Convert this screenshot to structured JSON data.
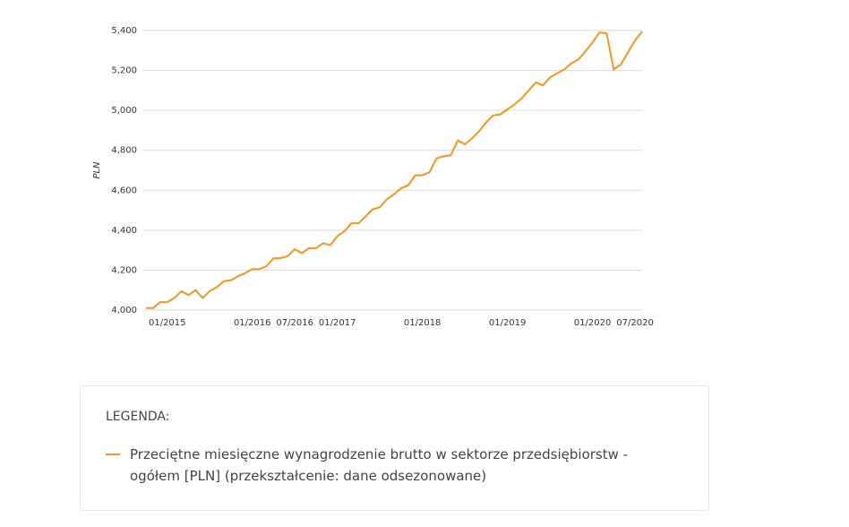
{
  "chart_data": {
    "type": "line",
    "ylabel": "PLN",
    "categories": [
      null,
      null,
      null,
      "01/2015",
      null,
      null,
      null,
      null,
      null,
      null,
      null,
      null,
      null,
      null,
      null,
      "01/2016",
      null,
      null,
      null,
      null,
      null,
      "07/2016",
      null,
      null,
      null,
      null,
      null,
      "01/2017",
      null,
      null,
      null,
      null,
      null,
      null,
      null,
      null,
      null,
      null,
      null,
      "01/2018",
      null,
      null,
      null,
      null,
      null,
      null,
      null,
      null,
      null,
      null,
      null,
      "01/2019",
      null,
      null,
      null,
      null,
      null,
      null,
      null,
      null,
      null,
      null,
      null,
      "01/2020",
      null,
      null,
      null,
      null,
      null,
      "07/2020",
      null
    ],
    "series": [
      {
        "name": "Przeciętne miesięczne wynagrodzenie brutto w sektorze przedsiębiorstw - ogółem [PLN] (przekształcenie: dane odsezonowane)",
        "color": "#f7941d",
        "values": [
          4010,
          4010,
          4040,
          4040,
          4060,
          4095,
          4075,
          4100,
          4060,
          4095,
          4115,
          4145,
          4150,
          4170,
          4185,
          4205,
          4205,
          4220,
          4260,
          4260,
          4270,
          4305,
          4285,
          4310,
          4310,
          4335,
          4325,
          4370,
          4395,
          4435,
          4435,
          4470,
          4505,
          4515,
          4555,
          4580,
          4610,
          4625,
          4675,
          4675,
          4690,
          4760,
          4770,
          4775,
          4850,
          4830,
          4860,
          4895,
          4940,
          4975,
          4980,
          5005,
          5030,
          5060,
          5100,
          5140,
          5125,
          5165,
          5185,
          5205,
          5235,
          5255,
          5295,
          5340,
          5390,
          5385,
          5205,
          5230,
          5290,
          5350,
          5395
        ]
      }
    ],
    "ylim": [
      4000,
      5400
    ],
    "yticks": [
      {
        "value": 4000,
        "label": "4,000"
      },
      {
        "value": 4200,
        "label": "4,200"
      },
      {
        "value": 4400,
        "label": "4,400"
      },
      {
        "value": 4600,
        "label": "4,600"
      },
      {
        "value": 4800,
        "label": "4,800"
      },
      {
        "value": 5000,
        "label": "5,000"
      },
      {
        "value": 5200,
        "label": "5,200"
      },
      {
        "value": 5400,
        "label": "5,400"
      }
    ],
    "grid": true,
    "legend_title": "LEGENDA:"
  }
}
